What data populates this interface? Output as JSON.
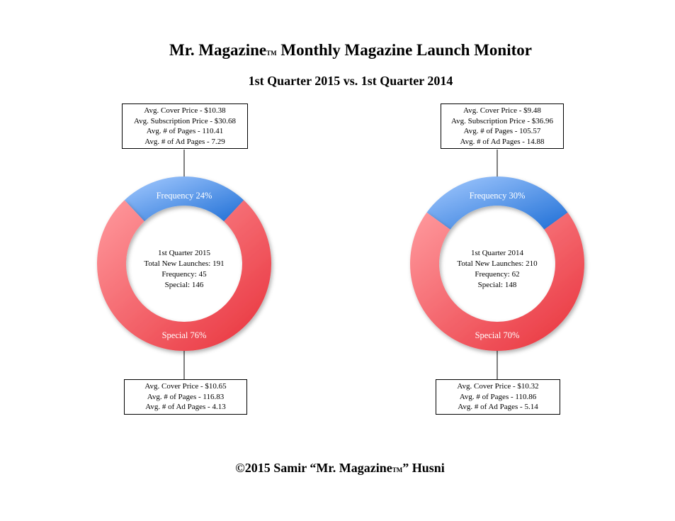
{
  "title": {
    "main": "Mr. Magazine",
    "tm": "TM",
    "rest": " Monthly Magazine Launch Monitor"
  },
  "subtitle": "1st Quarter 2015 vs. 1st Quarter 2014",
  "footer": {
    "pre": "©2015 Samir “Mr. Magazine",
    "tm": "TM",
    "post": "” Husni"
  },
  "colors": {
    "frequency": "#4a90e2",
    "special": "#f0404a"
  },
  "chart_data": [
    {
      "type": "pie",
      "title": "1st Quarter 2015",
      "categories": [
        "Frequency",
        "Special"
      ],
      "values": [
        24,
        76
      ],
      "slice_labels": [
        "Frequency 24%",
        "Special 76%"
      ],
      "center": [
        "1st Quarter 2015",
        "Total New Launches: 191",
        "Frequency: 45",
        "Special: 146"
      ],
      "frequency_box": [
        "Avg. Cover Price - $10.38",
        "Avg. Subscription Price - $30.68",
        "Avg. # of Pages - 110.41",
        "Avg. # of Ad Pages - 7.29"
      ],
      "special_box": [
        "Avg. Cover Price - $10.65",
        "Avg. # of Pages - 116.83",
        "Avg. # of Ad Pages - 4.13"
      ]
    },
    {
      "type": "pie",
      "title": "1st Quarter 2014",
      "categories": [
        "Frequency",
        "Special"
      ],
      "values": [
        30,
        70
      ],
      "slice_labels": [
        "Frequency 30%",
        "Special 70%"
      ],
      "center": [
        "1st Quarter 2014",
        "Total New Launches: 210",
        "Frequency: 62",
        "Special: 148"
      ],
      "frequency_box": [
        "Avg. Cover Price - $9.48",
        "Avg. Subscription Price - $36.96",
        "Avg. # of Pages - 105.57",
        "Avg. # of Ad Pages - 14.88"
      ],
      "special_box": [
        "Avg. Cover Price - $10.32",
        "Avg. # of Pages - 110.86",
        "Avg. # of Ad Pages - 5.14"
      ]
    }
  ]
}
